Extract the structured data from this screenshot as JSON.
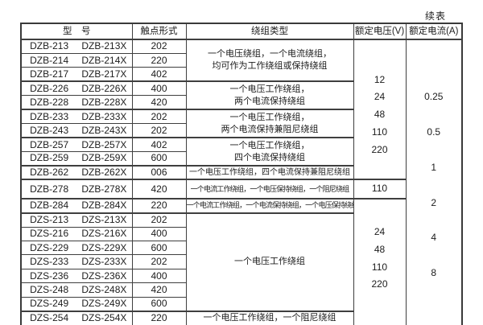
{
  "continued_label": "续表",
  "table": {
    "headers": [
      "型　号",
      "触点形式",
      "绕组类型",
      "额定电压(V)",
      "额定电流(A)"
    ],
    "rows": [
      {
        "m1": "DZB-213",
        "m2": "DZB-213X",
        "contact": "202"
      },
      {
        "m1": "DZB-214",
        "m2": "DZB-214X",
        "contact": "220"
      },
      {
        "m1": "DZB-217",
        "m2": "DZB-217X",
        "contact": "402"
      },
      {
        "m1": "DZB-226",
        "m2": "DZB-226X",
        "contact": "400"
      },
      {
        "m1": "DZB-228",
        "m2": "DZB-228X",
        "contact": "420"
      },
      {
        "m1": "DZB-233",
        "m2": "DZB-233X",
        "contact": "202"
      },
      {
        "m1": "DZB-243",
        "m2": "DZB-243X",
        "contact": "202"
      },
      {
        "m1": "DZB-257",
        "m2": "DZB-257X",
        "contact": "402"
      },
      {
        "m1": "DZB-259",
        "m2": "DZB-259X",
        "contact": "600"
      },
      {
        "m1": "DZB-262",
        "m2": "DZB-262X",
        "contact": "006"
      },
      {
        "m1": "DZB-278",
        "m2": "DZB-278X",
        "contact": "420"
      },
      {
        "m1": "DZB-284",
        "m2": "DZB-284X",
        "contact": "220"
      },
      {
        "m1": "DZS-213",
        "m2": "DZS-213X",
        "contact": "202"
      },
      {
        "m1": "DZS-216",
        "m2": "DZS-216X",
        "contact": "400"
      },
      {
        "m1": "DZS-229",
        "m2": "DZS-229X",
        "contact": "600"
      },
      {
        "m1": "DZS-233",
        "m2": "DZS-233X",
        "contact": "202"
      },
      {
        "m1": "DZS-236",
        "m2": "DZS-236X",
        "contact": "400"
      },
      {
        "m1": "DZS-248",
        "m2": "DZS-248X",
        "contact": "420"
      },
      {
        "m1": "DZS-249",
        "m2": "DZS-249X",
        "contact": "600"
      },
      {
        "m1": "DZS-254",
        "m2": "DZS-254X",
        "contact": "220"
      }
    ],
    "winding_groups": [
      {
        "span": 3,
        "lines": [
          "一个电压绕组，一个电流绕组，",
          "均可作为工作绕组或保持绕组"
        ]
      },
      {
        "span": 2,
        "lines": [
          "一个电压工作绕组，",
          "两个电流保持绕组"
        ]
      },
      {
        "span": 2,
        "lines": [
          "一个电压工作绕组，",
          "两个电流保持兼阻尼绕组"
        ]
      },
      {
        "span": 2,
        "lines": [
          "一个电压工作绕组，",
          "四个电流保持绕组"
        ]
      },
      {
        "span": 1,
        "lines": [
          "一个电压工作绕组，四个电流保持兼阻尼绕组"
        ]
      },
      {
        "span": 1,
        "lines": [
          "一个电流工作绕组，一个电压保持绕组，一个阻尼绕组"
        ]
      },
      {
        "span": 1,
        "lines": [
          "一个电流工作绕组，一个电流保持绕组，一个电压保持绕组"
        ]
      },
      {
        "span": 7,
        "lines": [
          "一个电压工作绕组"
        ]
      },
      {
        "span": 1,
        "lines": [
          "一个电压工作绕组，一个阻尼绕组"
        ]
      }
    ],
    "voltage_groups": [
      {
        "span": 10,
        "values": [
          "12",
          "24",
          "48",
          "110",
          "220"
        ]
      },
      {
        "span": 1,
        "values": [
          "110"
        ]
      },
      {
        "span": 9,
        "values": [
          "24",
          "48",
          "110",
          "220"
        ]
      }
    ],
    "current_group": {
      "span": 20,
      "values": [
        "0.25",
        "0.5",
        "1",
        "2",
        "4",
        "8"
      ]
    }
  }
}
